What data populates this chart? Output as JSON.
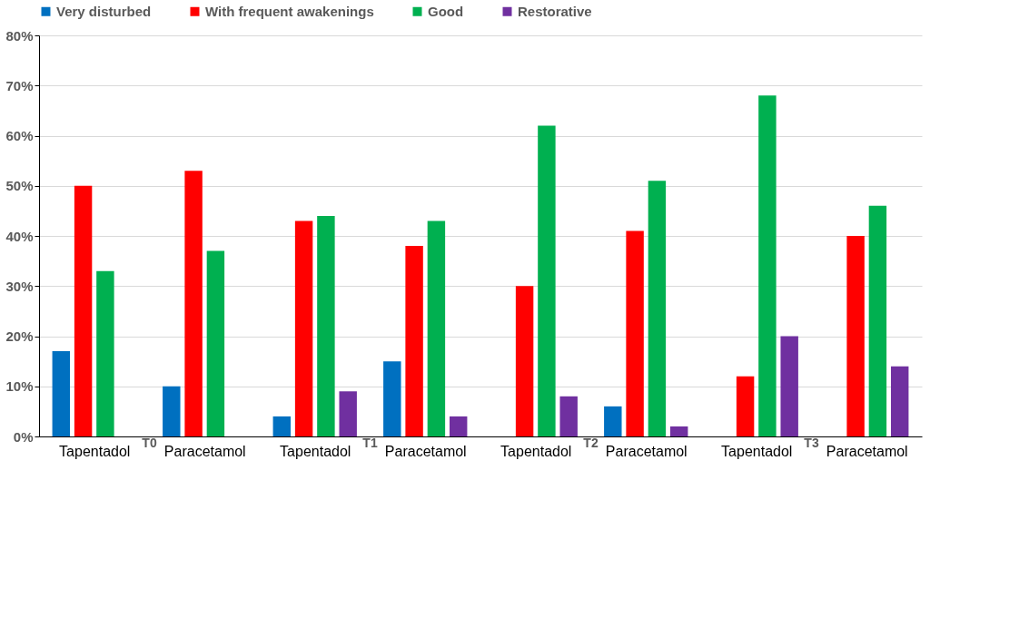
{
  "chart_data": {
    "type": "bar",
    "categories": [
      "Tapentadol",
      "Paracetamol",
      "Tapentadol",
      "Paracetamol",
      "Tapentadol",
      "Paracetamol",
      "Tapentadol",
      "Paracetamol"
    ],
    "series": [
      {
        "name": "Very disturbed",
        "color": "#0070c0",
        "values": [
          17,
          10,
          4,
          15,
          null,
          6,
          null,
          null
        ]
      },
      {
        "name": "With frequent awakenings",
        "color": "#ff0000",
        "values": [
          50,
          53,
          43,
          38,
          30,
          41,
          12,
          40
        ]
      },
      {
        "name": "Good",
        "color": "#00b050",
        "values": [
          33,
          37,
          44,
          43,
          62,
          51,
          68,
          46
        ]
      },
      {
        "name": "Restorative",
        "color": "#7030a0",
        "values": [
          null,
          null,
          9,
          4,
          8,
          2,
          20,
          14
        ]
      }
    ],
    "ylim": [
      0,
      80
    ],
    "yticks": [
      {
        "value": 0,
        "label": "0%"
      },
      {
        "value": 10,
        "label": "10%"
      },
      {
        "value": 20,
        "label": "20%"
      },
      {
        "value": 30,
        "label": "30%"
      },
      {
        "value": 40,
        "label": "40%"
      },
      {
        "value": 50,
        "label": "50%"
      },
      {
        "value": 60,
        "label": "60%"
      },
      {
        "value": 70,
        "label": "70%"
      },
      {
        "value": 80,
        "label": "80%"
      }
    ],
    "grid": "y",
    "legend": "top",
    "annotations": [
      "T0",
      "T1",
      "T2",
      "T3"
    ]
  }
}
